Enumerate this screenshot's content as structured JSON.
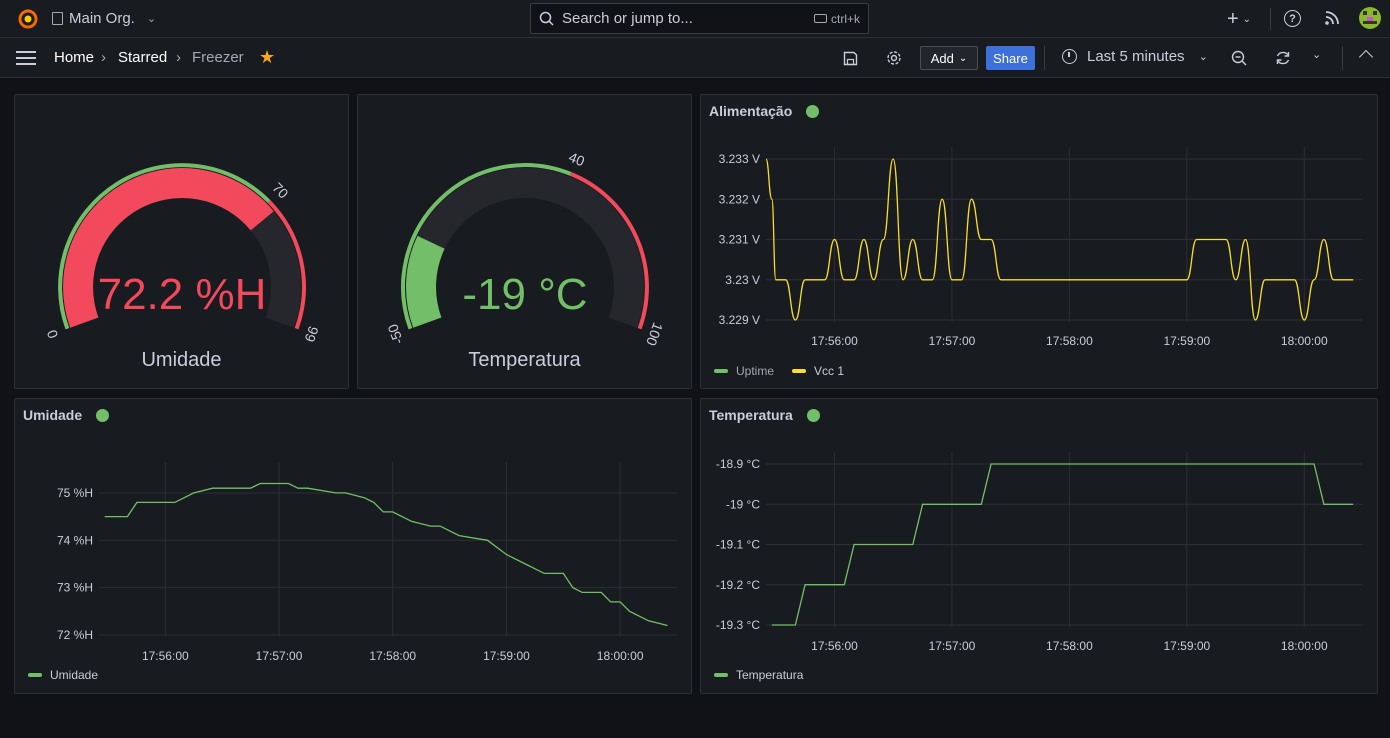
{
  "topbar": {
    "org_name": "Main Org.",
    "search_placeholder": "Search or jump to...",
    "search_shortcut": "ctrl+k",
    "icons": [
      "grafana-logo-icon",
      "building-icon",
      "chevron-down-icon",
      "search-icon",
      "keyboard-icon",
      "plus-icon",
      "help-icon",
      "rss-icon",
      "avatar"
    ]
  },
  "navbar": {
    "breadcrumbs": [
      "Home",
      "Starred",
      "Freezer"
    ],
    "add_label": "Add",
    "share_label": "Share",
    "time_range": "Last 5 minutes",
    "starred": true
  },
  "colors": {
    "green": "#73bf69",
    "red": "#f2495c",
    "yellow": "#fade2a",
    "share_blue": "#3d71d9",
    "star_orange": "#f5a623"
  },
  "panels": {
    "umidade_gauge": {
      "title": "Umidade",
      "value_text": "72.2 %H",
      "value": 72.2,
      "min": 0,
      "max": 99,
      "threshold": 70,
      "tick_labels": [
        "0",
        "70",
        "99"
      ]
    },
    "temperatura_gauge": {
      "title": "Temperatura",
      "value_text": "-19 °C",
      "value": -19,
      "min": -50,
      "max": 100,
      "threshold": 40,
      "tick_labels": [
        "-50",
        "40",
        "100"
      ]
    },
    "alimentacao": {
      "title": "Alimentação"
    },
    "umidade_ts": {
      "title": "Umidade"
    },
    "temperatura_ts": {
      "title": "Temperatura"
    }
  },
  "chart_data": [
    {
      "type": "line",
      "title": "Alimentação",
      "x_ticks": [
        "17:56:00",
        "17:57:00",
        "17:58:00",
        "17:59:00",
        "18:00:00"
      ],
      "y_ticks": [
        "3.233 V",
        "3.232 V",
        "3.231 V",
        "3.23 V",
        "3.229 V"
      ],
      "ylim": [
        3.229,
        3.233
      ],
      "xlim": [
        "17:55:25",
        "18:00:30"
      ],
      "legend": "bottom-left",
      "series": [
        {
          "name": "Uptime",
          "color": "#73bf69",
          "x": [],
          "y": []
        },
        {
          "name": "Vcc 1",
          "color": "#fade2a",
          "x": [
            "17:55:25",
            "17:55:28",
            "17:55:30",
            "17:55:35",
            "17:55:40",
            "17:55:45",
            "17:55:48",
            "17:55:55",
            "17:56:00",
            "17:56:05",
            "17:56:10",
            "17:56:15",
            "17:56:20",
            "17:56:25",
            "17:56:30",
            "17:56:35",
            "17:56:40",
            "17:56:45",
            "17:56:50",
            "17:56:55",
            "17:57:00",
            "17:57:05",
            "17:57:10",
            "17:57:15",
            "17:57:20",
            "17:57:25",
            "17:57:30",
            "17:57:35",
            "17:57:40",
            "17:57:45",
            "17:57:50",
            "17:57:55",
            "17:58:00",
            "17:58:30",
            "17:59:00",
            "17:59:05",
            "17:59:10",
            "17:59:20",
            "17:59:25",
            "17:59:30",
            "17:59:35",
            "17:59:40",
            "17:59:45",
            "17:59:50",
            "17:59:55",
            "18:00:00",
            "18:00:05",
            "18:00:10",
            "18:00:15",
            "18:00:20",
            "18:00:25"
          ],
          "y": [
            3.233,
            3.232,
            3.23,
            3.23,
            3.229,
            3.23,
            3.23,
            3.23,
            3.231,
            3.23,
            3.23,
            3.231,
            3.23,
            3.231,
            3.233,
            3.23,
            3.231,
            3.23,
            3.23,
            3.232,
            3.23,
            3.23,
            3.232,
            3.231,
            3.231,
            3.23,
            3.23,
            3.23,
            3.23,
            3.23,
            3.23,
            3.23,
            3.23,
            3.23,
            3.23,
            3.231,
            3.231,
            3.231,
            3.23,
            3.231,
            3.229,
            3.23,
            3.23,
            3.23,
            3.23,
            3.229,
            3.23,
            3.231,
            3.23,
            3.23,
            3.23
          ]
        }
      ]
    },
    {
      "type": "line",
      "title": "Umidade",
      "x_ticks": [
        "17:56:00",
        "17:57:00",
        "17:58:00",
        "17:59:00",
        "18:00:00"
      ],
      "y_ticks": [
        "75 %H",
        "74 %H",
        "73 %H",
        "72 %H"
      ],
      "ylim": [
        72,
        75.4
      ],
      "xlim": [
        "17:55:25",
        "18:00:30"
      ],
      "legend": "bottom-left",
      "series": [
        {
          "name": "Umidade",
          "color": "#73bf69",
          "x": [
            "17:55:28",
            "17:55:40",
            "17:55:45",
            "17:56:00",
            "17:56:05",
            "17:56:15",
            "17:56:25",
            "17:56:45",
            "17:56:50",
            "17:57:00",
            "17:57:05",
            "17:57:10",
            "17:57:15",
            "17:57:30",
            "17:57:35",
            "17:57:45",
            "17:57:50",
            "17:57:55",
            "17:58:00",
            "17:58:10",
            "17:58:20",
            "17:58:25",
            "17:58:35",
            "17:58:50",
            "17:59:00",
            "17:59:10",
            "17:59:20",
            "17:59:25",
            "17:59:30",
            "17:59:35",
            "17:59:40",
            "17:59:50",
            "17:59:55",
            "18:00:00",
            "18:00:05",
            "18:00:10",
            "18:00:15",
            "18:00:25"
          ],
          "y": [
            74.5,
            74.5,
            74.8,
            74.8,
            74.8,
            75.0,
            75.1,
            75.1,
            75.2,
            75.2,
            75.2,
            75.1,
            75.1,
            75.0,
            75.0,
            74.9,
            74.8,
            74.6,
            74.6,
            74.4,
            74.3,
            74.3,
            74.1,
            74.0,
            73.7,
            73.5,
            73.3,
            73.3,
            73.3,
            73.0,
            72.9,
            72.9,
            72.7,
            72.7,
            72.5,
            72.4,
            72.3,
            72.2
          ]
        }
      ]
    },
    {
      "type": "line",
      "title": "Temperatura",
      "x_ticks": [
        "17:56:00",
        "17:57:00",
        "17:58:00",
        "17:59:00",
        "18:00:00"
      ],
      "y_ticks": [
        "-18.9 °C",
        "-19 °C",
        "-19.1 °C",
        "-19.2 °C",
        "-19.3 °C"
      ],
      "ylim": [
        -19.3,
        -18.9
      ],
      "xlim": [
        "17:55:25",
        "18:00:30"
      ],
      "legend": "bottom-left",
      "series": [
        {
          "name": "Temperatura",
          "color": "#73bf69",
          "x": [
            "17:55:28",
            "17:55:40",
            "17:55:45",
            "17:56:05",
            "17:56:10",
            "17:56:40",
            "17:56:45",
            "17:57:15",
            "17:57:20",
            "18:00:05",
            "18:00:10",
            "18:00:25"
          ],
          "y": [
            -19.3,
            -19.3,
            -19.2,
            -19.2,
            -19.1,
            -19.1,
            -19.0,
            -19.0,
            -18.9,
            -18.9,
            -19.0,
            -19.0
          ]
        }
      ]
    }
  ]
}
